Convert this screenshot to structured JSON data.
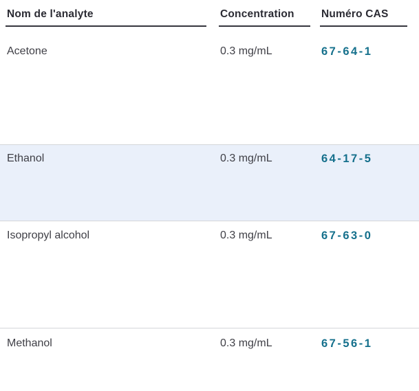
{
  "table": {
    "columns": [
      {
        "key": "name",
        "label": "Nom de l'analyte"
      },
      {
        "key": "concentration",
        "label": "Concentration"
      },
      {
        "key": "cas",
        "label": "Numéro CAS"
      }
    ],
    "rows": [
      {
        "name": "Acetone",
        "concentration": "0.3 mg/mL",
        "cas": "67-64-1",
        "highlighted": false
      },
      {
        "name": "Ethanol",
        "concentration": "0.3 mg/mL",
        "cas": "64-17-5",
        "highlighted": true
      },
      {
        "name": "Isopropyl alcohol",
        "concentration": "0.3 mg/mL",
        "cas": "67-63-0",
        "highlighted": false
      },
      {
        "name": "Methanol",
        "concentration": "0.3 mg/mL",
        "cas": "67-56-1",
        "highlighted": false
      }
    ],
    "colors": {
      "header_text": "#2b2b33",
      "header_underline": "#35353d",
      "body_text": "#3f3f46",
      "cas_link": "#15708c",
      "row_highlight": "#eaf0fa",
      "separator": "#d4d6d9"
    }
  }
}
